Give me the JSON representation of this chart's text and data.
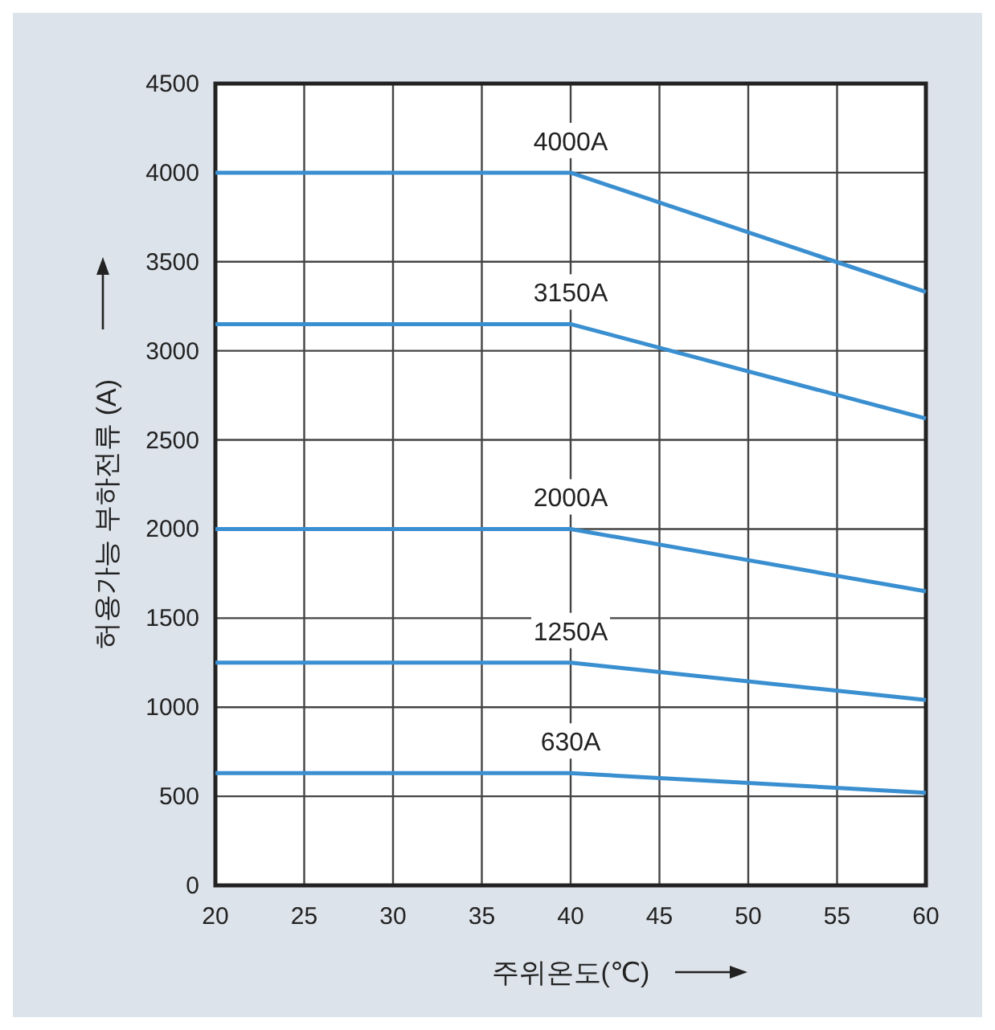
{
  "chart_data": {
    "type": "line",
    "xlabel": "주위온도(℃)",
    "ylabel": "허용가능 부하전류 (A)",
    "xlim": [
      20,
      60
    ],
    "ylim": [
      0,
      4500
    ],
    "xticks": [
      20,
      25,
      30,
      35,
      40,
      45,
      50,
      55,
      60
    ],
    "yticks": [
      0,
      500,
      1000,
      1500,
      2000,
      2500,
      3000,
      3500,
      4000,
      4500
    ],
    "grid": true,
    "marker": "none",
    "line_style": "solid",
    "series": [
      {
        "name": "4000A",
        "color": "#3a8fd0",
        "x": [
          20,
          40,
          60
        ],
        "values": [
          4000,
          4000,
          3330
        ]
      },
      {
        "name": "3150A",
        "color": "#3a8fd0",
        "x": [
          20,
          40,
          60
        ],
        "values": [
          3150,
          3150,
          2620
        ]
      },
      {
        "name": "2000A",
        "color": "#3a8fd0",
        "x": [
          20,
          40,
          60
        ],
        "values": [
          2000,
          2000,
          1650
        ]
      },
      {
        "name": "1250A",
        "color": "#3a8fd0",
        "x": [
          20,
          40,
          60
        ],
        "values": [
          1250,
          1250,
          1040
        ]
      },
      {
        "name": "630A",
        "color": "#3a8fd0",
        "x": [
          20,
          40,
          60
        ],
        "values": [
          630,
          630,
          520
        ]
      }
    ]
  }
}
